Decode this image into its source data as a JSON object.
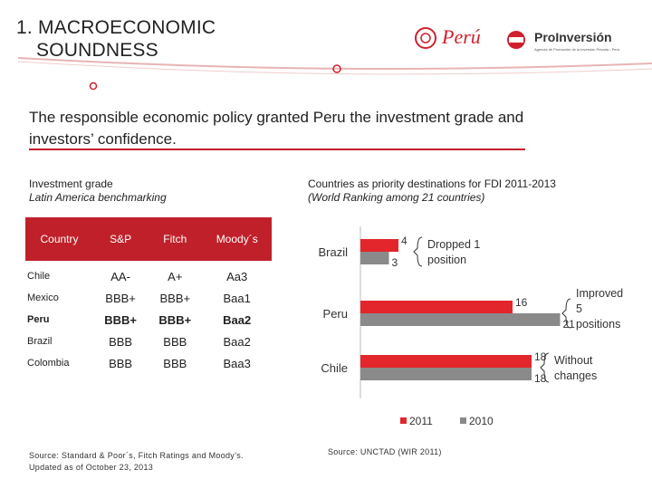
{
  "slide": {
    "title_line1": "1. MACROECONOMIC",
    "title_line2": "SOUNDNESS",
    "logo_peru": "Perú",
    "logo_proinversion": "ProInversión",
    "logo_proinversion_sub": "Agencia de Promoción de la Inversión Privada - Perú",
    "headline": "The responsible economic policy granted Peru the investment grade and investors’ confidence.",
    "accent_color": "#c0202a"
  },
  "left_panel": {
    "title": "Investment grade",
    "subtitle": "Latin America benchmarking",
    "table": {
      "headers": [
        "Country",
        "S&P",
        "Fitch",
        "Moody´s"
      ],
      "rows": [
        {
          "country": "Chile",
          "sp": "AA-",
          "fitch": "A+",
          "moodys": "Aa3",
          "highlight": false
        },
        {
          "country": "Mexico",
          "sp": "BBB+",
          "fitch": "BBB+",
          "moodys": "Baa1",
          "highlight": false
        },
        {
          "country": "Peru",
          "sp": "BBB+",
          "fitch": "BBB+",
          "moodys": "Baa2",
          "highlight": true
        },
        {
          "country": "Brazil",
          "sp": "BBB",
          "fitch": "BBB",
          "moodys": "Baa2",
          "highlight": false
        },
        {
          "country": "Colombia",
          "sp": "BBB",
          "fitch": "BBB",
          "moodys": "Baa3",
          "highlight": false
        }
      ]
    },
    "source": "Source: Standard & Poor´s, Fitch Ratings and Moody’s.",
    "updated": "Updated as of October 23, 2013"
  },
  "chart_data": {
    "type": "bar",
    "orientation": "horizontal",
    "title": "Countries as priority destinations for FDI 2011-2013",
    "subtitle": "(World Ranking among 21 countries)",
    "categories": [
      "Brazil",
      "Peru",
      "Chile"
    ],
    "series": [
      {
        "name": "2011",
        "values": [
          4,
          16,
          18
        ],
        "color": "#e2262c"
      },
      {
        "name": "2010",
        "values": [
          3,
          21,
          18
        ],
        "color": "#8a8a8a"
      }
    ],
    "annotations": [
      {
        "category": "Brazil",
        "text": "Dropped 1 position"
      },
      {
        "category": "Peru",
        "text": "Improved 5 positions"
      },
      {
        "category": "Chile",
        "text": "Without changes"
      }
    ],
    "legend": "bottom",
    "source": "Source: UNCTAD (WIR 2011)"
  }
}
